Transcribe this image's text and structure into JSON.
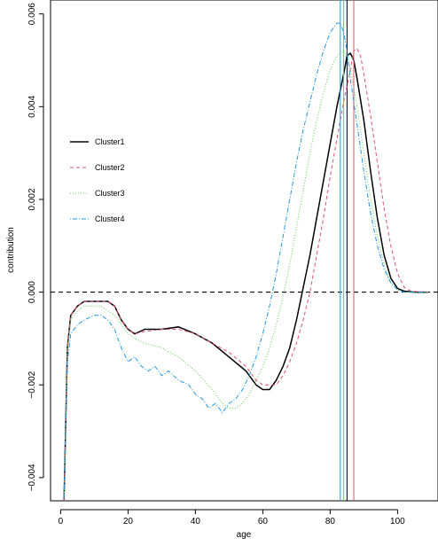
{
  "chart_data": {
    "type": "line",
    "title": "",
    "xlabel": "age",
    "ylabel": "contribution",
    "xlim": [
      -3,
      112
    ],
    "ylim": [
      -0.0045,
      0.0063
    ],
    "x_ticks": [
      0,
      20,
      40,
      60,
      80,
      100
    ],
    "x_tick_labels": [
      "0",
      "20",
      "40",
      "60",
      "80",
      "100"
    ],
    "y_ticks": [
      -0.004,
      -0.002,
      0.0,
      0.002,
      0.004,
      0.006
    ],
    "y_tick_labels": [
      "−0.004",
      "−0.002",
      "0.000",
      "0.002",
      "0.004",
      "0.006"
    ],
    "grid": false,
    "legend_position": "left",
    "hline": 0,
    "series": [
      {
        "name": "Cluster1",
        "color": "#000000",
        "dash": "solid",
        "line_width": 1.5,
        "vline": 85,
        "points": [
          [
            1,
            -0.0045
          ],
          [
            2,
            -0.0012
          ],
          [
            3,
            -0.0005
          ],
          [
            5,
            -0.0003
          ],
          [
            7,
            -0.0002
          ],
          [
            10,
            -0.0002
          ],
          [
            12,
            -0.0002
          ],
          [
            14,
            -0.0002
          ],
          [
            16,
            -0.0003
          ],
          [
            18,
            -0.0006
          ],
          [
            20,
            -0.0008
          ],
          [
            22,
            -0.0009
          ],
          [
            25,
            -0.0008
          ],
          [
            30,
            -0.0008
          ],
          [
            35,
            -0.00075
          ],
          [
            40,
            -0.0009
          ],
          [
            45,
            -0.0011
          ],
          [
            50,
            -0.0014
          ],
          [
            55,
            -0.0017
          ],
          [
            58,
            -0.002
          ],
          [
            60,
            -0.0021
          ],
          [
            62,
            -0.0021
          ],
          [
            64,
            -0.0019
          ],
          [
            66,
            -0.0016
          ],
          [
            68,
            -0.0012
          ],
          [
            70,
            -0.0006
          ],
          [
            72,
            0.0001
          ],
          [
            74,
            0.0008
          ],
          [
            76,
            0.0016
          ],
          [
            78,
            0.0024
          ],
          [
            80,
            0.0032
          ],
          [
            82,
            0.004
          ],
          [
            84,
            0.0047
          ],
          [
            85,
            0.0051
          ],
          [
            86,
            0.00515
          ],
          [
            87,
            0.005
          ],
          [
            88,
            0.0046
          ],
          [
            90,
            0.0037
          ],
          [
            92,
            0.0026
          ],
          [
            94,
            0.0016
          ],
          [
            96,
            0.0008
          ],
          [
            98,
            0.0003
          ],
          [
            100,
            8e-05
          ],
          [
            102,
            2e-05
          ],
          [
            105,
            0.0
          ],
          [
            109,
            0.0
          ]
        ]
      },
      {
        "name": "Cluster2",
        "color": "#df536b",
        "dash": "dashed",
        "line_width": 1,
        "vline": 87,
        "points": [
          [
            1,
            -0.0045
          ],
          [
            2,
            -0.0012
          ],
          [
            3,
            -0.0005
          ],
          [
            5,
            -0.0003
          ],
          [
            7,
            -0.0002
          ],
          [
            10,
            -0.0002
          ],
          [
            12,
            -0.0002
          ],
          [
            14,
            -0.0002
          ],
          [
            16,
            -0.0003
          ],
          [
            18,
            -0.0006
          ],
          [
            20,
            -0.0008
          ],
          [
            22,
            -0.0009
          ],
          [
            25,
            -0.00085
          ],
          [
            30,
            -0.0008
          ],
          [
            35,
            -0.0008
          ],
          [
            40,
            -0.0009
          ],
          [
            45,
            -0.0011
          ],
          [
            50,
            -0.0013
          ],
          [
            55,
            -0.0016
          ],
          [
            58,
            -0.0019
          ],
          [
            60,
            -0.002
          ],
          [
            62,
            -0.002
          ],
          [
            64,
            -0.002
          ],
          [
            66,
            -0.0018
          ],
          [
            68,
            -0.0015
          ],
          [
            70,
            -0.0011
          ],
          [
            72,
            -0.0006
          ],
          [
            74,
            0.0
          ],
          [
            76,
            0.0008
          ],
          [
            78,
            0.0016
          ],
          [
            80,
            0.0025
          ],
          [
            82,
            0.0033
          ],
          [
            84,
            0.0041
          ],
          [
            86,
            0.0048
          ],
          [
            87,
            0.0052
          ],
          [
            88,
            0.00525
          ],
          [
            89,
            0.0051
          ],
          [
            90,
            0.0047
          ],
          [
            92,
            0.0038
          ],
          [
            94,
            0.0028
          ],
          [
            96,
            0.0018
          ],
          [
            98,
            0.001
          ],
          [
            100,
            0.0004
          ],
          [
            102,
            0.0001
          ],
          [
            104,
            2e-05
          ],
          [
            109,
            0.0
          ]
        ]
      },
      {
        "name": "Cluster3",
        "color": "#61d04f",
        "dash": "dotted",
        "line_width": 1,
        "vline": 84,
        "points": [
          [
            1,
            -0.0045
          ],
          [
            2,
            -0.0012
          ],
          [
            3,
            -0.0006
          ],
          [
            5,
            -0.0004
          ],
          [
            7,
            -0.0003
          ],
          [
            10,
            -0.0003
          ],
          [
            12,
            -0.0003
          ],
          [
            14,
            -0.0004
          ],
          [
            16,
            -0.0005
          ],
          [
            18,
            -0.0007
          ],
          [
            20,
            -0.0009
          ],
          [
            22,
            -0.001
          ],
          [
            25,
            -0.0011
          ],
          [
            30,
            -0.0012
          ],
          [
            35,
            -0.0014
          ],
          [
            40,
            -0.0017
          ],
          [
            45,
            -0.0021
          ],
          [
            48,
            -0.0024
          ],
          [
            50,
            -0.0025
          ],
          [
            52,
            -0.0025
          ],
          [
            54,
            -0.0024
          ],
          [
            56,
            -0.0022
          ],
          [
            58,
            -0.0019
          ],
          [
            60,
            -0.0016
          ],
          [
            62,
            -0.0012
          ],
          [
            64,
            -0.0007
          ],
          [
            66,
            -0.0001
          ],
          [
            68,
            0.0006
          ],
          [
            70,
            0.0014
          ],
          [
            72,
            0.0022
          ],
          [
            74,
            0.003
          ],
          [
            76,
            0.0037
          ],
          [
            78,
            0.0043
          ],
          [
            80,
            0.0048
          ],
          [
            82,
            0.0051
          ],
          [
            84,
            0.0052
          ],
          [
            85,
            0.0051
          ],
          [
            86,
            0.0048
          ],
          [
            88,
            0.004
          ],
          [
            90,
            0.003
          ],
          [
            92,
            0.002
          ],
          [
            94,
            0.0012
          ],
          [
            96,
            0.0006
          ],
          [
            98,
            0.0002
          ],
          [
            100,
            5e-05
          ],
          [
            102,
            0.0
          ],
          [
            109,
            0.0
          ]
        ]
      },
      {
        "name": "Cluster4",
        "color": "#2297e6",
        "dash": "dotdash",
        "line_width": 1,
        "vline": 83,
        "points": [
          [
            1,
            -0.0045
          ],
          [
            2,
            -0.0015
          ],
          [
            3,
            -0.0009
          ],
          [
            5,
            -0.0007
          ],
          [
            7,
            -0.0006
          ],
          [
            10,
            -0.0005
          ],
          [
            12,
            -0.0005
          ],
          [
            14,
            -0.0006
          ],
          [
            16,
            -0.0008
          ],
          [
            18,
            -0.0012
          ],
          [
            20,
            -0.0015
          ],
          [
            22,
            -0.0014
          ],
          [
            24,
            -0.0016
          ],
          [
            26,
            -0.0017
          ],
          [
            28,
            -0.0016
          ],
          [
            30,
            -0.0018
          ],
          [
            32,
            -0.0017
          ],
          [
            35,
            -0.0019
          ],
          [
            38,
            -0.002
          ],
          [
            40,
            -0.0022
          ],
          [
            42,
            -0.0023
          ],
          [
            44,
            -0.0025
          ],
          [
            46,
            -0.0024
          ],
          [
            48,
            -0.0026
          ],
          [
            50,
            -0.0024
          ],
          [
            52,
            -0.0023
          ],
          [
            54,
            -0.0021
          ],
          [
            56,
            -0.0018
          ],
          [
            58,
            -0.0014
          ],
          [
            60,
            -0.0009
          ],
          [
            62,
            -0.0003
          ],
          [
            64,
            0.0004
          ],
          [
            66,
            0.0012
          ],
          [
            68,
            0.002
          ],
          [
            70,
            0.0028
          ],
          [
            72,
            0.0035
          ],
          [
            74,
            0.0041
          ],
          [
            76,
            0.0047
          ],
          [
            78,
            0.0052
          ],
          [
            80,
            0.0056
          ],
          [
            82,
            0.0058
          ],
          [
            83,
            0.0058
          ],
          [
            84,
            0.0056
          ],
          [
            85,
            0.0052
          ],
          [
            86,
            0.0046
          ],
          [
            88,
            0.0036
          ],
          [
            90,
            0.0026
          ],
          [
            92,
            0.0017
          ],
          [
            94,
            0.001
          ],
          [
            96,
            0.0005
          ],
          [
            98,
            0.0002
          ],
          [
            100,
            5e-05
          ],
          [
            102,
            0.0
          ],
          [
            109,
            0.0
          ]
        ]
      }
    ]
  }
}
